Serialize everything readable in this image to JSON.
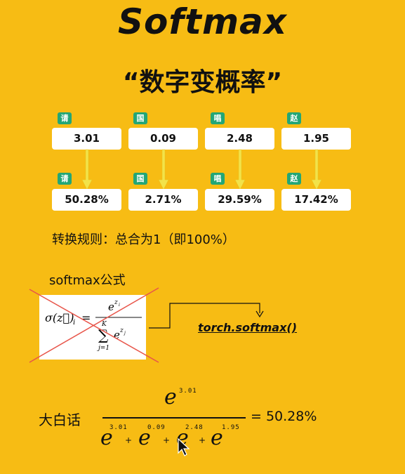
{
  "title": "Softmax",
  "subtitle": "“数字变概率”",
  "tags": [
    "请",
    "国",
    "唱",
    "赵"
  ],
  "inputs": [
    "3.01",
    "0.09",
    "2.48",
    "1.95"
  ],
  "outputs": [
    "50.28%",
    "2.71%",
    "29.59%",
    "17.42%"
  ],
  "rule_text": "转换规则：总合为1（即100%）",
  "formula_label": "softmax公式",
  "formula": {
    "lhs": "σ(z⃗)",
    "lhs_sub": "i",
    "eq": "=",
    "num_base": "e",
    "num_exp": "z",
    "num_exp_sub": "i",
    "sum_top": "K",
    "sum_sym": "∑",
    "sum_bottom": "j=1",
    "den_base": "e",
    "den_exp": "z",
    "den_exp_sub": "j"
  },
  "torch_label": "torch.softmax()",
  "plain_label": "大白话",
  "plain": {
    "numerator_base": "e",
    "numerator_exp": "3.01",
    "denominator": [
      {
        "base": "e",
        "exp": "3.01"
      },
      {
        "base": "e",
        "exp": "0.09"
      },
      {
        "base": "e",
        "exp": "2.48"
      },
      {
        "base": "e",
        "exp": "1.95"
      }
    ],
    "plus": "+",
    "result": "= 50.28%"
  },
  "colors": {
    "background": "#F7BC14",
    "tag": "#23A676",
    "arrow": "#F2E34A",
    "cross": "#E8554A"
  },
  "icons": [
    "mouse-cursor-icon",
    "down-arrow-icon"
  ]
}
